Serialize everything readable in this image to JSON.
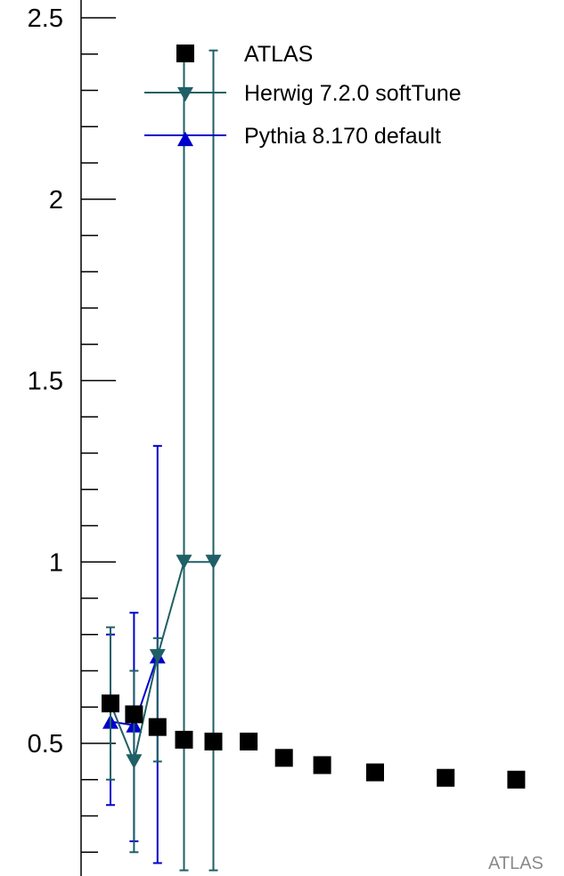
{
  "chart_data": {
    "type": "scatter",
    "title": "",
    "xlabel": "",
    "ylabel": "",
    "ylim": [
      0.2,
      2.6
    ],
    "xlim": [
      0,
      20
    ],
    "y_ticks": [
      {
        "value": 0.5,
        "label": "0.5"
      },
      {
        "value": 1,
        "label": "1"
      },
      {
        "value": 1.5,
        "label": "1.5"
      },
      {
        "value": 2,
        "label": "2"
      },
      {
        "value": 2.5,
        "label": "2.5"
      }
    ],
    "legend_position": "top-right",
    "series": [
      {
        "name": "ATLAS",
        "marker": "square",
        "color": "#000000",
        "line": false,
        "points": [
          {
            "x": 1.0,
            "y": 0.61
          },
          {
            "x": 1.8,
            "y": 0.58
          },
          {
            "x": 2.6,
            "y": 0.545
          },
          {
            "x": 3.5,
            "y": 0.51
          },
          {
            "x": 4.5,
            "y": 0.505
          },
          {
            "x": 5.7,
            "y": 0.505
          },
          {
            "x": 6.9,
            "y": 0.46
          },
          {
            "x": 8.2,
            "y": 0.44
          },
          {
            "x": 10.0,
            "y": 0.42
          },
          {
            "x": 12.4,
            "y": 0.405
          },
          {
            "x": 14.8,
            "y": 0.4
          }
        ]
      },
      {
        "name": "Herwig 7.2.0 softTune",
        "marker": "triangle-down",
        "color": "#1f5f66",
        "line": true,
        "points": [
          {
            "x": 1.0,
            "y": 0.61,
            "lo": 0.4,
            "hi": 0.82
          },
          {
            "x": 1.8,
            "y": 0.45,
            "lo": 0.2,
            "hi": 0.7
          },
          {
            "x": 2.6,
            "y": 0.74,
            "lo": 0.45,
            "hi": 0.79
          },
          {
            "x": 3.5,
            "y": 1.0,
            "lo": 0.15,
            "hi": 2.41
          },
          {
            "x": 4.5,
            "y": 1.0,
            "lo": 0.15,
            "hi": 2.41
          }
        ]
      },
      {
        "name": "Pythia 8.170 default",
        "marker": "triangle-up",
        "color": "#0000cc",
        "line": true,
        "points": [
          {
            "x": 1.0,
            "y": 0.56,
            "lo": 0.33,
            "hi": 0.8
          },
          {
            "x": 1.8,
            "y": 0.55,
            "lo": 0.23,
            "hi": 0.86
          },
          {
            "x": 2.6,
            "y": 0.74,
            "lo": 0.17,
            "hi": 1.32
          }
        ]
      }
    ],
    "annotations": [
      "ATLAS"
    ]
  }
}
